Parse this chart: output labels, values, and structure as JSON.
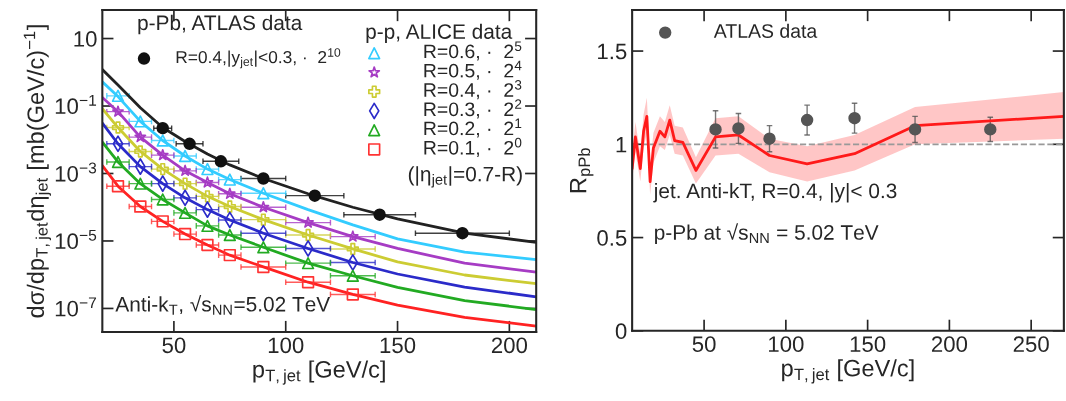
{
  "chart_data": [
    {
      "type": "scatter",
      "log": "y",
      "xlabel": "p$_{T,jet}$ [GeV/c]",
      "ylabel": "dσ/dp$_{T,jet}$dη$_{jet}$ [mb(GeV/c)$^{−1}$]",
      "xlim": [
        18,
        212
      ],
      "xticks": [
        50,
        100,
        150,
        200
      ],
      "ylim": [
        2e-08,
        70
      ],
      "yticks": [
        {
          "value": 10,
          "label": "10"
        },
        {
          "value": 0.1,
          "label": "10$^{−1}$"
        },
        {
          "value": 0.001,
          "label": "10$^{−3}$"
        },
        {
          "value": 1e-05,
          "label": "10$^{−5}$"
        },
        {
          "value": 1e-07,
          "label": "10$^{−7}$"
        }
      ],
      "grid": false,
      "legend": "top right",
      "legend_title": "p-p, ALICE data",
      "annotations": [
        "p-Pb, ATLAS data",
        "(|η$_{jet}$|=0.7-R)",
        "Anti-k$_{T}$, √s$_{NN}$=5.02 TeV"
      ],
      "series": [
        {
          "name": "R=0.4,|y$_{jet}$|<0.3, ·  2$^{10}$",
          "color": "#111111",
          "marker": "circle",
          "x": [
            45,
            57,
            71,
            90,
            113,
            142,
            179
          ],
          "values": [
            0.022,
            0.0076,
            0.0023,
            0.00071,
            0.00022,
            6e-05,
            1.7e-05
          ],
          "xerrors": [
            4,
            6,
            8,
            10,
            13,
            16,
            21
          ]
        },
        {
          "name": "R=0.6, ·  2$^{5}$",
          "color": "#33ccff",
          "marker": "triangle",
          "x": [
            25,
            35,
            45,
            55,
            65,
            75,
            90
          ],
          "values": [
            0.2,
            0.035,
            0.0095,
            0.0033,
            0.00135,
            0.00066,
            0.00026
          ],
          "xerrors": [
            5,
            5,
            5,
            5,
            5,
            5,
            10
          ]
        },
        {
          "name": "R=0.5, ·  2$^{4}$",
          "color": "#a63cc4",
          "marker": "star",
          "x": [
            25,
            35,
            45,
            55,
            65,
            75,
            90,
            110,
            130
          ],
          "values": [
            0.068,
            0.012,
            0.0035,
            0.0012,
            0.00054,
            0.00025,
            0.0001,
            3.5e-05,
            1.35e-05
          ],
          "xerrors": [
            5,
            5,
            5,
            5,
            5,
            5,
            10,
            10,
            10
          ]
        },
        {
          "name": "R=0.4, ·  2$^{3}$",
          "color": "#cccc33",
          "marker": "cross",
          "x": [
            25,
            35,
            45,
            55,
            65,
            75,
            90,
            110,
            130
          ],
          "values": [
            0.023,
            0.0045,
            0.00135,
            0.0005,
            0.00021,
            0.000105,
            4.3e-05,
            1.5e-05,
            5.8e-06
          ],
          "xerrors": [
            5,
            5,
            5,
            5,
            5,
            5,
            10,
            10,
            10
          ]
        },
        {
          "name": "R=0.3, ·  2$^{2}$",
          "color": "#2b2bc9",
          "marker": "diamond",
          "x": [
            25,
            35,
            45,
            55,
            65,
            75,
            90,
            110,
            130
          ],
          "values": [
            0.0076,
            0.0016,
            0.0005,
            0.00019,
            8.5e-05,
            4.2e-05,
            1.7e-05,
            6e-06,
            2.3e-06
          ],
          "xerrors": [
            5,
            5,
            5,
            5,
            5,
            5,
            10,
            10,
            10
          ]
        },
        {
          "name": "R=0.2, ·  2$^{1}$",
          "color": "#22aa22",
          "marker": "triangle",
          "x": [
            25,
            35,
            45,
            55,
            65,
            75,
            90,
            110,
            130
          ],
          "values": [
            0.0022,
            0.0005,
            0.00017,
            6.8e-05,
            2.8e-05,
            1.5e-05,
            6.5e-06,
            2.2e-06,
            9.3e-07
          ],
          "xerrors": [
            5,
            5,
            5,
            5,
            5,
            5,
            10,
            10,
            10
          ]
        },
        {
          "name": "R=0.1, ·  2$^{0}$",
          "color": "#ff3333",
          "marker": "square",
          "x": [
            25,
            35,
            45,
            55,
            65,
            75,
            90,
            110,
            130
          ],
          "values": [
            0.00042,
            0.000105,
            3.8e-05,
            1.6e-05,
            7.6e-06,
            3.8e-06,
            1.7e-06,
            6e-07,
            2.6e-07
          ],
          "xerrors": [
            5,
            5,
            5,
            5,
            5,
            5,
            10,
            10,
            10
          ]
        },
        {
          "type": "line",
          "color": "#222222",
          "x": [
            18,
            25,
            35,
            45,
            55,
            65,
            75,
            90,
            110,
            130,
            150,
            180,
            212
          ],
          "values": [
            1.2,
            0.42,
            0.089,
            0.023,
            0.0089,
            0.0038,
            0.0018,
            0.00071,
            0.00025,
            0.0001,
            4.5e-05,
            1.7e-05,
            9.1e-06
          ]
        },
        {
          "type": "line",
          "color": "#33ccff",
          "x": [
            18,
            25,
            35,
            45,
            55,
            65,
            75,
            90,
            110,
            130,
            150,
            180,
            212
          ],
          "values": [
            0.52,
            0.19,
            0.035,
            0.0095,
            0.0033,
            0.00135,
            0.00066,
            0.00026,
            8.5e-05,
            3e-05,
            1.15e-05,
            4.7e-06,
            2.8e-06
          ]
        },
        {
          "type": "line",
          "color": "#a63cc4",
          "x": [
            18,
            25,
            35,
            45,
            55,
            65,
            75,
            90,
            110,
            130,
            150,
            180,
            212
          ],
          "values": [
            0.18,
            0.068,
            0.012,
            0.0035,
            0.0012,
            0.00054,
            0.00025,
            0.0001,
            3.5e-05,
            1.35e-05,
            6e-06,
            2.2e-06,
            1.2e-06
          ]
        },
        {
          "type": "line",
          "color": "#cccc33",
          "x": [
            18,
            25,
            35,
            45,
            55,
            65,
            75,
            90,
            110,
            130,
            150,
            180,
            212
          ],
          "values": [
            0.083,
            0.023,
            0.0045,
            0.00135,
            0.0005,
            0.00021,
            0.000105,
            4.3e-05,
            1.5e-05,
            5.8e-06,
            2.4e-06,
            9.8e-07,
            5.4e-07
          ]
        },
        {
          "type": "line",
          "color": "#2b2bc9",
          "x": [
            18,
            25,
            35,
            45,
            55,
            65,
            75,
            90,
            110,
            130,
            150,
            180,
            212
          ],
          "values": [
            0.031,
            0.0076,
            0.0016,
            0.0005,
            0.00019,
            8.5e-05,
            4.2e-05,
            1.7e-05,
            6e-06,
            2.3e-06,
            1.05e-06,
            4.3e-07,
            2.2e-07
          ]
        },
        {
          "type": "line",
          "color": "#22aa22",
          "x": [
            18,
            25,
            35,
            45,
            55,
            65,
            75,
            90,
            110,
            130,
            150,
            180,
            212
          ],
          "values": [
            0.0085,
            0.0022,
            0.0005,
            0.00017,
            6.8e-05,
            2.8e-05,
            1.5e-05,
            6.5e-06,
            2.2e-06,
            9.3e-07,
            4.2e-07,
            1.7e-07,
            9.3e-08
          ]
        },
        {
          "type": "line",
          "color": "#ff2222",
          "x": [
            18,
            25,
            35,
            45,
            55,
            65,
            75,
            90,
            110,
            130,
            150,
            180,
            212
          ],
          "values": [
            0.0017,
            0.00042,
            0.000105,
            3.8e-05,
            1.6e-05,
            7.6e-06,
            3.8e-06,
            1.7e-06,
            6e-07,
            2.6e-07,
            1.26e-07,
            5.4e-08,
            3e-08
          ]
        }
      ]
    },
    {
      "type": "scatter",
      "xlabel": "p$_{T,jet}$ [GeV/c]",
      "ylabel": "R$_{pPb}$",
      "xlim": [
        6,
        270
      ],
      "xticks": [
        50,
        100,
        150,
        200,
        250
      ],
      "ylim": [
        0,
        1.72
      ],
      "yticks": [
        0,
        0.5,
        1,
        1.5
      ],
      "grid": false,
      "legend": "top left",
      "annotations": [
        "jet. Anti-kT, R=0.4, |y|< 0.3",
        "p-Pb at √s$_{NN}$ = 5.02 TeV"
      ],
      "ref_lines": [
        {
          "axis": "y",
          "value": 1,
          "color": "#999999",
          "line_style": "dashed"
        }
      ],
      "series": [
        {
          "name": "ATLAS data",
          "color": "#555555",
          "marker": "circle",
          "x": [
            57,
            71,
            90,
            113,
            142,
            179,
            225
          ],
          "values": [
            1.08,
            1.085,
            1.03,
            1.13,
            1.14,
            1.08,
            1.08
          ],
          "errors": [
            0.1,
            0.08,
            0.07,
            0.08,
            0.08,
            0.07,
            0.065
          ]
        },
        {
          "type": "line",
          "color": "#ff1a1a",
          "x": [
            6,
            8,
            11,
            13,
            15,
            17,
            19,
            23,
            26,
            29,
            32,
            37,
            45,
            57,
            71,
            90,
            113,
            142,
            179,
            270
          ],
          "values": [
            0.87,
            1.04,
            0.87,
            1.07,
            1.15,
            0.8,
            0.98,
            1.07,
            1.04,
            1.13,
            1.02,
            1.01,
            0.86,
            1.04,
            1.05,
            0.94,
            0.895,
            0.95,
            1.1,
            1.15
          ],
          "lower": [
            0.8,
            0.96,
            0.8,
            0.98,
            1.06,
            0.73,
            0.9,
            0.99,
            0.97,
            1.05,
            0.95,
            0.94,
            0.79,
            0.94,
            0.95,
            0.85,
            0.8,
            0.86,
            1.0,
            1.03
          ],
          "upper": [
            0.95,
            1.12,
            0.95,
            1.16,
            1.25,
            0.88,
            1.06,
            1.15,
            1.12,
            1.21,
            1.1,
            1.09,
            0.93,
            1.14,
            1.15,
            1.03,
            0.99,
            1.05,
            1.2,
            1.28
          ]
        }
      ]
    }
  ]
}
